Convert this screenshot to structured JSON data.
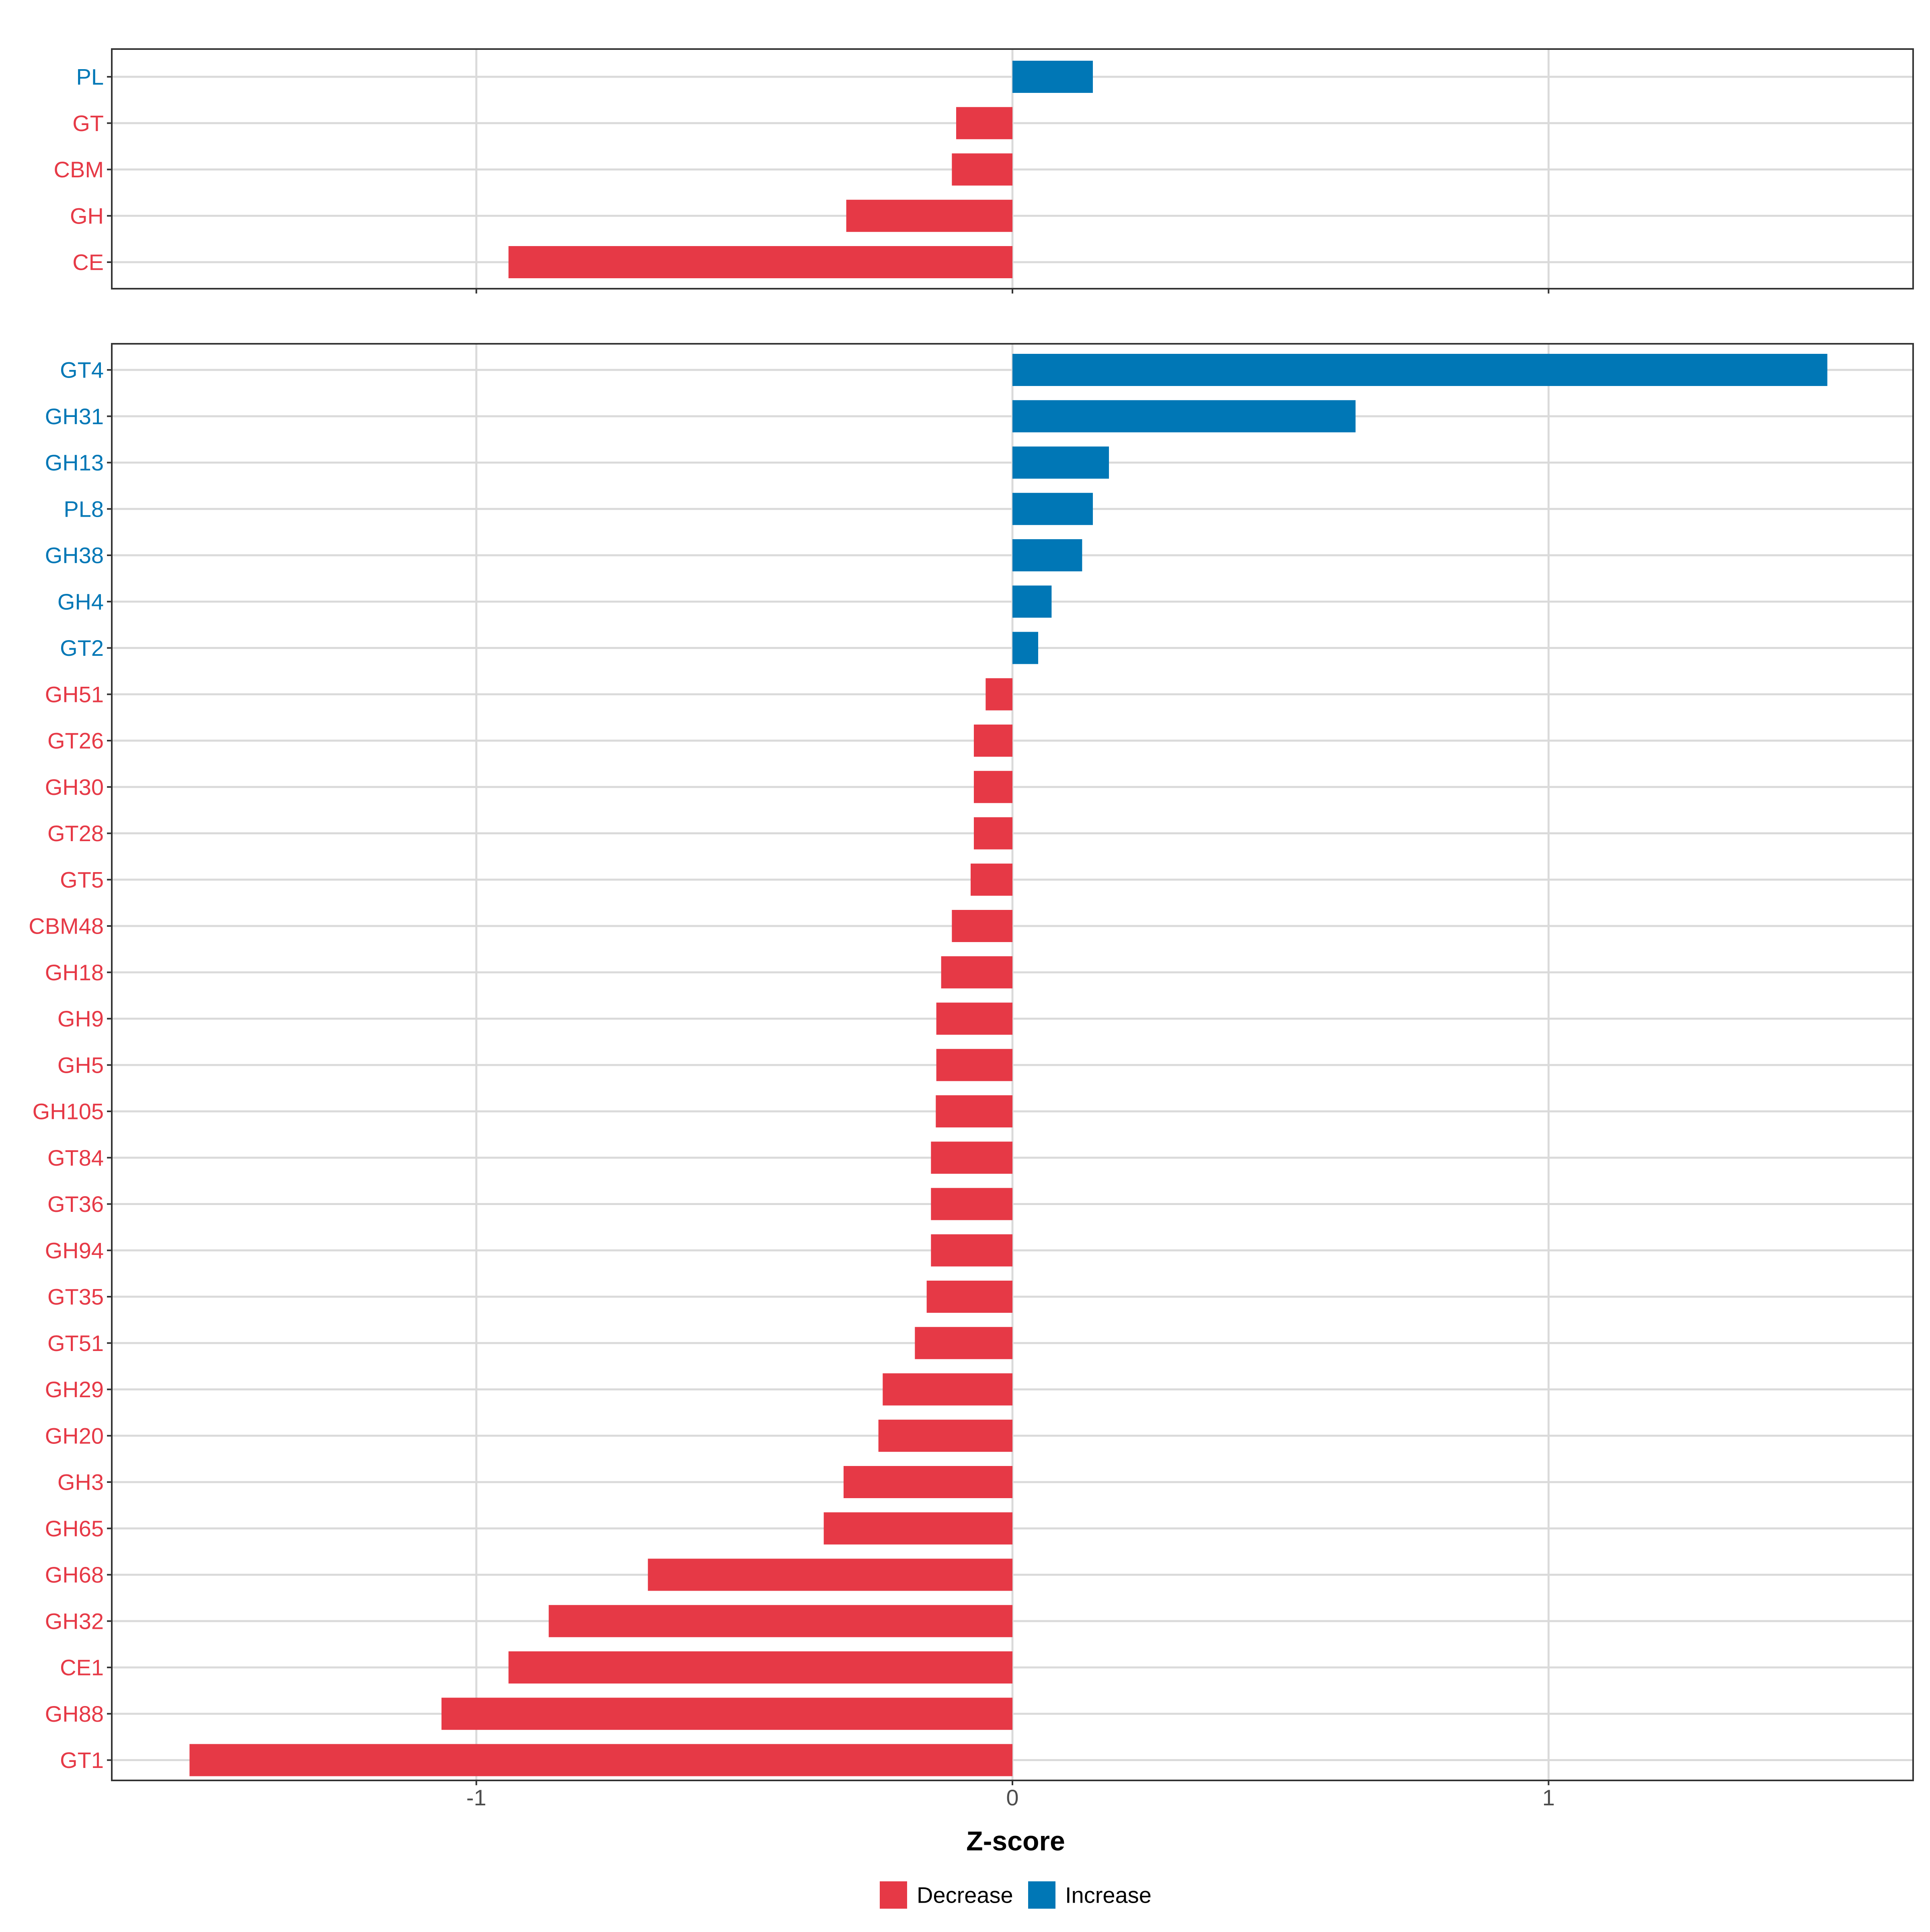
{
  "chart_data": {
    "type": "bar",
    "orientation": "horizontal",
    "xlabel": "Z-score",
    "xlim": [
      -1.68,
      1.68
    ],
    "xticks": [
      -1,
      0,
      1
    ],
    "xtick_labels": [
      "-1",
      "0",
      "1"
    ],
    "grid": true,
    "legend_position": "bottom",
    "legend": [
      {
        "label": "Decrease",
        "color": "#E63946"
      },
      {
        "label": "Increase",
        "color": "#0077B6"
      }
    ],
    "panels": [
      {
        "name": "classes",
        "categories": [
          "PL",
          "GT",
          "CBM",
          "GH",
          "CE"
        ],
        "values": [
          0.15,
          -0.105,
          -0.113,
          -0.31,
          -0.94
        ],
        "direction": [
          "Increase",
          "Decrease",
          "Decrease",
          "Decrease",
          "Decrease"
        ]
      },
      {
        "name": "families",
        "categories": [
          "GT4",
          "GH31",
          "GH13",
          "PL8",
          "GH38",
          "GH4",
          "GT2",
          "GH51",
          "GT26",
          "GH30",
          "GT28",
          "GT5",
          "CBM48",
          "GH18",
          "GH9",
          "GH5",
          "GH105",
          "GT84",
          "GT36",
          "GH94",
          "GT35",
          "GT51",
          "GH29",
          "GH20",
          "GH3",
          "GH65",
          "GH68",
          "GH32",
          "CE1",
          "GH88",
          "GT1"
        ],
        "values": [
          1.52,
          0.64,
          0.18,
          0.15,
          0.13,
          0.073,
          0.048,
          -0.05,
          -0.072,
          -0.072,
          -0.072,
          -0.078,
          -0.113,
          -0.133,
          -0.142,
          -0.142,
          -0.143,
          -0.152,
          -0.152,
          -0.152,
          -0.16,
          -0.182,
          -0.242,
          -0.25,
          -0.315,
          -0.352,
          -0.68,
          -0.865,
          -0.94,
          -1.065,
          -1.535
        ],
        "direction": [
          "Increase",
          "Increase",
          "Increase",
          "Increase",
          "Increase",
          "Increase",
          "Increase",
          "Decrease",
          "Decrease",
          "Decrease",
          "Decrease",
          "Decrease",
          "Decrease",
          "Decrease",
          "Decrease",
          "Decrease",
          "Decrease",
          "Decrease",
          "Decrease",
          "Decrease",
          "Decrease",
          "Decrease",
          "Decrease",
          "Decrease",
          "Decrease",
          "Decrease",
          "Decrease",
          "Decrease",
          "Decrease",
          "Decrease",
          "Decrease"
        ]
      }
    ]
  }
}
